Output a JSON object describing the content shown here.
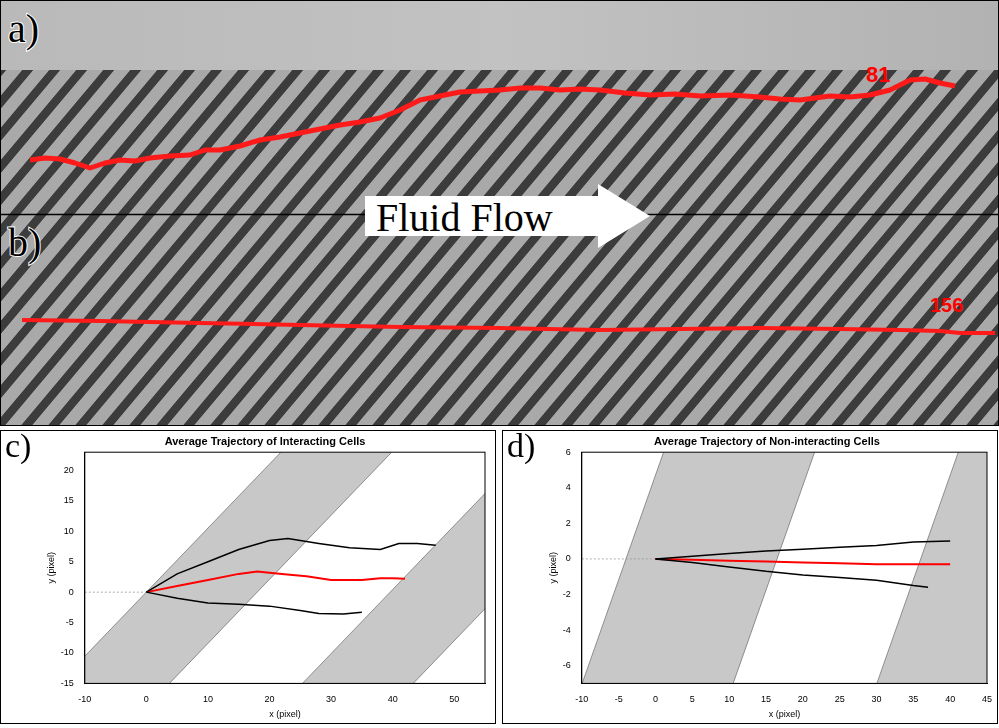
{
  "image_panels": [
    {
      "letter": "a)",
      "track_label": "81"
    },
    {
      "letter": "b)",
      "track_label": "156"
    }
  ],
  "flow_label": "Fluid Flow",
  "chart_data": [
    {
      "panel": "c)",
      "type": "line",
      "title": "Average Trajectory of Interacting Cells",
      "x_label": "x (pixel)",
      "y_label": "y (pixel)",
      "xlim": [
        -10,
        55
      ],
      "xticks": [
        -10,
        0,
        10,
        20,
        30,
        40,
        50
      ],
      "ylim": [
        -15,
        23
      ],
      "yticks": [
        -15,
        -10,
        -5,
        0,
        5,
        10,
        15,
        20
      ],
      "grid": false,
      "bands": {
        "color": "#c8c8c8",
        "slant": 0.95,
        "x_at_y0": [
          [
            0,
            18
          ],
          [
            39.6,
            57.6
          ]
        ]
      },
      "reference_line": {
        "y": 0
      },
      "series": [
        {
          "color": "#000000",
          "x": [
            0,
            5,
            10,
            15,
            20,
            23,
            28,
            33,
            38,
            41,
            44,
            47
          ],
          "values": [
            0,
            3,
            5,
            7,
            8.5,
            8.8,
            8,
            7.3,
            7,
            8,
            8,
            7.7
          ]
        },
        {
          "color": "#000000",
          "x": [
            0,
            5,
            10,
            15,
            20,
            25,
            28,
            32,
            35
          ],
          "values": [
            0,
            -1,
            -1.8,
            -2,
            -2.3,
            -3,
            -3.5,
            -3.6,
            -3.3
          ]
        },
        {
          "color": "#ff0000",
          "x": [
            0,
            5,
            10,
            15,
            18,
            22,
            26,
            30,
            35,
            38,
            40,
            42
          ],
          "values": [
            0,
            1,
            2,
            3,
            3.4,
            3,
            2.6,
            2,
            2,
            2.3,
            2.3,
            2.2
          ]
        }
      ]
    },
    {
      "panel": "d)",
      "type": "line",
      "title": "Average Trajectory of Non-interacting Cells",
      "x_label": "x (pixel)",
      "y_label": "y (pixel)",
      "xlim": [
        -10,
        45
      ],
      "xticks": [
        -10,
        -5,
        0,
        5,
        10,
        15,
        20,
        25,
        30,
        35,
        40,
        45
      ],
      "ylim": [
        -7,
        6
      ],
      "yticks": [
        -6,
        -4,
        -2,
        0,
        2,
        4,
        6
      ],
      "grid": false,
      "bands": {
        "color": "#c8c8c8",
        "slant": 0.85,
        "x_at_y0": [
          [
            -4,
            16.5
          ],
          [
            36,
            56
          ]
        ]
      },
      "reference_line": {
        "y": 0
      },
      "series": [
        {
          "color": "#000000",
          "x": [
            0,
            5,
            10,
            15,
            20,
            25,
            30,
            35,
            40
          ],
          "values": [
            0,
            0.15,
            0.3,
            0.45,
            0.55,
            0.65,
            0.75,
            0.95,
            1.0
          ]
        },
        {
          "color": "#000000",
          "x": [
            0,
            5,
            10,
            15,
            20,
            25,
            30,
            35,
            37
          ],
          "values": [
            0,
            -0.2,
            -0.45,
            -0.7,
            -0.9,
            -1.05,
            -1.2,
            -1.5,
            -1.6
          ]
        },
        {
          "color": "#ff0000",
          "x": [
            0,
            5,
            10,
            15,
            20,
            25,
            30,
            35,
            40
          ],
          "values": [
            0,
            -0.05,
            -0.1,
            -0.15,
            -0.2,
            -0.25,
            -0.3,
            -0.3,
            -0.3
          ]
        }
      ]
    }
  ]
}
